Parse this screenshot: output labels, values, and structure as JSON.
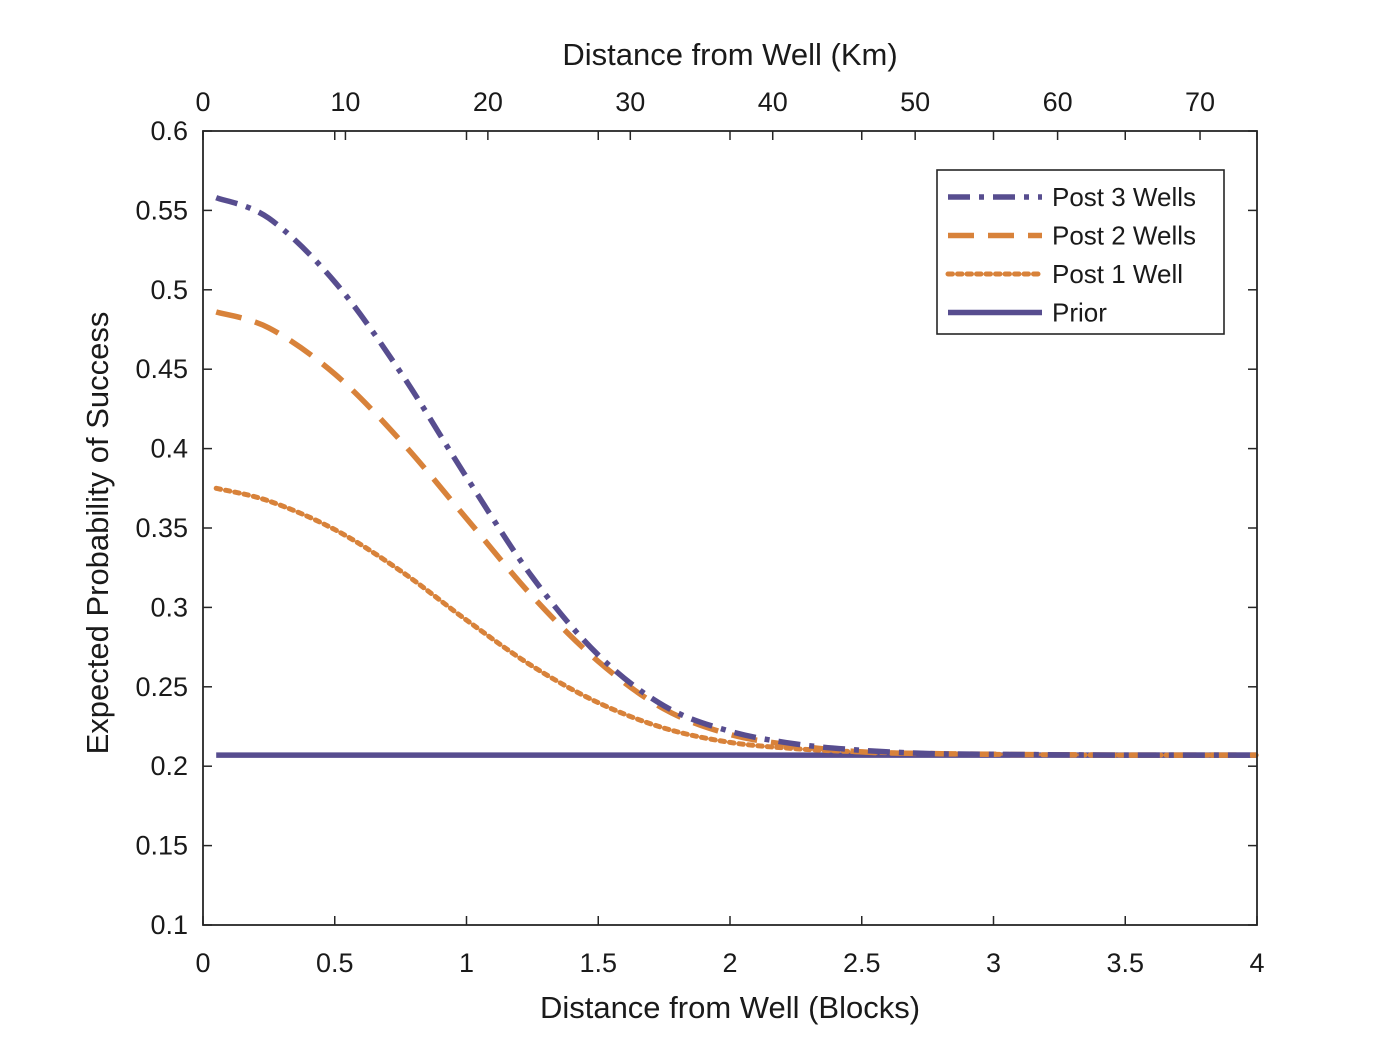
{
  "chart_data": {
    "type": "line",
    "top_xlabel": "Distance from Well (Km)",
    "xlabel": "Distance from Well (Blocks)",
    "ylabel": "Expected Probability of Success",
    "xlim": [
      0,
      4
    ],
    "ylim": [
      0.1,
      0.6
    ],
    "top_xlim": [
      0,
      74
    ],
    "x_ticks": [
      0,
      0.5,
      1,
      1.5,
      2,
      2.5,
      3,
      3.5,
      4
    ],
    "x_tick_labels": [
      "0",
      "0.5",
      "1",
      "1.5",
      "2",
      "2.5",
      "3",
      "3.5",
      "4"
    ],
    "top_x_ticks": [
      0,
      10,
      20,
      30,
      40,
      50,
      60,
      70
    ],
    "top_x_tick_labels": [
      "0",
      "10",
      "20",
      "30",
      "40",
      "50",
      "60",
      "70"
    ],
    "y_ticks": [
      0.1,
      0.15,
      0.2,
      0.25,
      0.3,
      0.35,
      0.4,
      0.45,
      0.5,
      0.55,
      0.6
    ],
    "y_tick_labels": [
      "0.1",
      "0.15",
      "0.2",
      "0.25",
      "0.3",
      "0.35",
      "0.4",
      "0.45",
      "0.5",
      "0.55",
      "0.6"
    ],
    "grid": false,
    "legend_position": "top-right",
    "series": [
      {
        "name": "Post 3 Wells",
        "color": "#574D8F",
        "dash": "dash-dot",
        "x": [
          0.05,
          0.25,
          0.5,
          0.75,
          1.0,
          1.25,
          1.5,
          1.75,
          2.0,
          2.25,
          2.5,
          2.75,
          3.0,
          3.5,
          4.0
        ],
        "y": [
          0.558,
          0.545,
          0.505,
          0.448,
          0.382,
          0.319,
          0.27,
          0.238,
          0.222,
          0.214,
          0.21,
          0.208,
          0.2075,
          0.207,
          0.207
        ]
      },
      {
        "name": "Post 2 Wells",
        "color": "#D8823A",
        "dash": "dash",
        "x": [
          0.05,
          0.25,
          0.5,
          0.75,
          1.0,
          1.25,
          1.5,
          1.75,
          2.0,
          2.25,
          2.5,
          2.75,
          3.0,
          3.5,
          4.0
        ],
        "y": [
          0.486,
          0.476,
          0.447,
          0.405,
          0.356,
          0.307,
          0.266,
          0.236,
          0.22,
          0.213,
          0.209,
          0.208,
          0.2075,
          0.207,
          0.207
        ]
      },
      {
        "name": "Post 1 Well",
        "color": "#D8823A",
        "dash": "dot",
        "x": [
          0.05,
          0.25,
          0.5,
          0.75,
          1.0,
          1.25,
          1.5,
          1.75,
          2.0,
          2.25,
          2.5,
          2.75,
          3.0,
          3.5,
          4.0
        ],
        "y": [
          0.375,
          0.367,
          0.349,
          0.323,
          0.292,
          0.263,
          0.24,
          0.224,
          0.215,
          0.211,
          0.209,
          0.208,
          0.2075,
          0.207,
          0.207
        ]
      },
      {
        "name": "Prior",
        "color": "#574D8F",
        "dash": "solid",
        "x": [
          0.05,
          4.0
        ],
        "y": [
          0.207,
          0.207
        ]
      }
    ]
  }
}
